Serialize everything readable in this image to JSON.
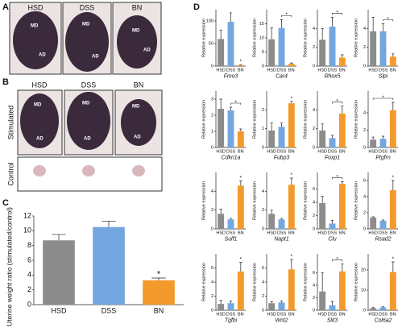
{
  "panel_labels": [
    "A",
    "B",
    "C",
    "D"
  ],
  "images": {
    "A": {
      "groups": [
        "HSD",
        "DSS",
        "BN"
      ],
      "region_labels": [
        "MD",
        "AD"
      ]
    },
    "B": {
      "groups": [
        "HSD",
        "DSS",
        "BN"
      ],
      "rows": [
        "Stimulated",
        "Control"
      ],
      "region_labels": [
        "MD",
        "AD"
      ]
    }
  },
  "chart_data": [
    {
      "type": "bar",
      "y_label": "Uterine weight ratio (stimulated/control)",
      "categories": [
        "HSD",
        "DSS",
        "BN"
      ],
      "colors": [
        "#8c8c8c",
        "#74a6df",
        "#f39a2c"
      ],
      "values": [
        8.7,
        10.5,
        3.3
      ],
      "errors": [
        0.8,
        0.8,
        0.3
      ],
      "ylim": [
        0,
        12
      ],
      "yticks": [
        0,
        2,
        4,
        6,
        8,
        10,
        12
      ],
      "annotation": "*",
      "annotation_span": [
        "BN"
      ]
    },
    {
      "type": "bar",
      "title": "Fmo3",
      "y_label": "Relative expression",
      "categories": [
        "HSD",
        "DSS",
        "BN"
      ],
      "colors": [
        "#8c8c8c",
        "#74a6df",
        "#f39a2c"
      ],
      "values": [
        60,
        98,
        2
      ],
      "errors": [
        20,
        20,
        1
      ],
      "ylim": [
        0,
        125
      ],
      "yticks": [
        0,
        50,
        100
      ],
      "annotation": "*",
      "annotation_span": [
        "BN"
      ]
    },
    {
      "type": "bar",
      "title": "Car4",
      "y_label": "Relative expression",
      "categories": [
        "HSD",
        "DSS",
        "BN"
      ],
      "colors": [
        "#8c8c8c",
        "#74a6df",
        "#f39a2c"
      ],
      "values": [
        9.5,
        13.5,
        0.8
      ],
      "errors": [
        4,
        3,
        0.3
      ],
      "ylim": [
        0,
        20
      ],
      "yticks": [
        0,
        5,
        10,
        15
      ],
      "annotation": "*",
      "annotation_span": [
        "DSS",
        "BN"
      ]
    },
    {
      "type": "bar",
      "title": "Rhox5",
      "y_label": "Relative expression",
      "categories": [
        "HSD",
        "DSS",
        "BN"
      ],
      "colors": [
        "#8c8c8c",
        "#74a6df",
        "#f39a2c"
      ],
      "values": [
        2.8,
        4.2,
        0.9
      ],
      "errors": [
        1.2,
        1,
        0.3
      ],
      "ylim": [
        0,
        6
      ],
      "yticks": [
        0,
        2,
        4
      ],
      "annotation": "*",
      "annotation_span": [
        "DSS",
        "BN"
      ]
    },
    {
      "type": "bar",
      "title": "Slpi",
      "y_label": "Relative expression",
      "categories": [
        "HSD",
        "DSS",
        "BN"
      ],
      "colors": [
        "#8c8c8c",
        "#74a6df",
        "#f39a2c"
      ],
      "values": [
        3.7,
        3.7,
        1
      ],
      "errors": [
        1.5,
        0.8,
        0.3
      ],
      "ylim": [
        0,
        6
      ],
      "yticks": [
        0,
        2,
        4
      ],
      "annotation": "*",
      "annotation_span": [
        "DSS",
        "BN"
      ]
    },
    {
      "type": "bar",
      "title": "Cdkn1a",
      "y_label": "Relative expression",
      "categories": [
        "HSD",
        "DSS",
        "BN"
      ],
      "colors": [
        "#8c8c8c",
        "#74a6df",
        "#f39a2c"
      ],
      "values": [
        2.4,
        2.3,
        1.0
      ],
      "errors": [
        0.6,
        0.2,
        0.15
      ],
      "ylim": [
        0,
        3.5
      ],
      "yticks": [
        0,
        1,
        2,
        3
      ],
      "annotation": "*",
      "annotation_span": [
        "DSS",
        "BN"
      ]
    },
    {
      "type": "bar",
      "title": "Fubp3",
      "y_label": "Relative expression",
      "categories": [
        "HSD",
        "DSS",
        "BN"
      ],
      "colors": [
        "#8c8c8c",
        "#74a6df",
        "#f39a2c"
      ],
      "values": [
        0.9,
        1.1,
        2.35
      ],
      "errors": [
        0.4,
        0.2,
        0.1
      ],
      "ylim": [
        0,
        3
      ],
      "yticks": [
        0,
        1,
        2
      ],
      "annotation": "*",
      "annotation_span": [
        "BN"
      ]
    },
    {
      "type": "bar",
      "title": "Foxp1",
      "y_label": "Relative expression",
      "categories": [
        "HSD",
        "DSS",
        "BN"
      ],
      "colors": [
        "#8c8c8c",
        "#74a6df",
        "#f39a2c"
      ],
      "values": [
        1.8,
        1.0,
        3.6
      ],
      "errors": [
        0.7,
        0.3,
        0.8
      ],
      "ylim": [
        0,
        6
      ],
      "yticks": [
        0,
        2,
        4
      ],
      "annotation": "*",
      "annotation_span": [
        "DSS",
        "BN"
      ]
    },
    {
      "type": "bar",
      "title": "Ptgfrn",
      "y_label": "Relative expression",
      "categories": [
        "HSD",
        "DSS",
        "BN"
      ],
      "colors": [
        "#8c8c8c",
        "#74a6df",
        "#f39a2c"
      ],
      "values": [
        0.9,
        1.0,
        4.3
      ],
      "errors": [
        0.3,
        0.3,
        0.9
      ],
      "ylim": [
        0,
        6.5
      ],
      "yticks": [
        0,
        2,
        4
      ],
      "annotation": "*",
      "annotation_span": [
        "HSD",
        "BN"
      ]
    },
    {
      "type": "bar",
      "title": "Sulf1",
      "y_label": "Relative expression",
      "categories": [
        "HSD",
        "DSS",
        "BN"
      ],
      "colors": [
        "#8c8c8c",
        "#74a6df",
        "#f39a2c"
      ],
      "values": [
        1.6,
        1.0,
        4.6
      ],
      "errors": [
        0.5,
        0.1,
        0.5
      ],
      "ylim": [
        0,
        6
      ],
      "yticks": [
        0,
        2,
        4
      ],
      "annotation": "*",
      "annotation_span": [
        "BN"
      ]
    },
    {
      "type": "bar",
      "title": "Napt1",
      "y_label": "Relative expression",
      "categories": [
        "HSD",
        "DSS",
        "BN"
      ],
      "colors": [
        "#8c8c8c",
        "#74a6df",
        "#f39a2c"
      ],
      "values": [
        1.6,
        1.0,
        4.7
      ],
      "errors": [
        0.4,
        0.1,
        0.7
      ],
      "ylim": [
        0,
        6
      ],
      "yticks": [
        0,
        2,
        4
      ],
      "annotation": "*",
      "annotation_span": [
        "BN"
      ]
    },
    {
      "type": "bar",
      "title": "Clu",
      "y_label": "Relative expression",
      "categories": [
        "HSD",
        "DSS",
        "BN"
      ],
      "colors": [
        "#8c8c8c",
        "#74a6df",
        "#f39a2c"
      ],
      "values": [
        3.9,
        0.8,
        6.8
      ],
      "errors": [
        1,
        0.5,
        0.3
      ],
      "ylim": [
        0,
        8.5
      ],
      "yticks": [
        0,
        2,
        4,
        6
      ],
      "annotation": "*",
      "annotation_span": [
        "DSS",
        "BN"
      ]
    },
    {
      "type": "bar",
      "title": "Rsad2",
      "y_label": "Relative expression",
      "categories": [
        "HSD",
        "DSS",
        "BN"
      ],
      "colors": [
        "#8c8c8c",
        "#74a6df",
        "#f39a2c"
      ],
      "values": [
        1.4,
        1.0,
        4.8
      ],
      "errors": [
        0.1,
        0.1,
        1.2
      ],
      "ylim": [
        0,
        7
      ],
      "yticks": [
        0,
        2,
        4,
        6
      ],
      "annotation": "*",
      "annotation_span": [
        "BN"
      ]
    },
    {
      "type": "bar",
      "title": "Tgfbi",
      "y_label": "Relative expression",
      "categories": [
        "HSD",
        "DSS",
        "BN"
      ],
      "colors": [
        "#8c8c8c",
        "#74a6df",
        "#f39a2c"
      ],
      "values": [
        0.9,
        1.0,
        5.5
      ],
      "errors": [
        0.5,
        0.3,
        1.3
      ],
      "ylim": [
        0,
        8
      ],
      "yticks": [
        0,
        2,
        4,
        6
      ],
      "annotation": "*",
      "annotation_span": [
        "BN"
      ]
    },
    {
      "type": "bar",
      "title": "Wnt2",
      "y_label": "Relative expression",
      "categories": [
        "HSD",
        "DSS",
        "BN"
      ],
      "colors": [
        "#8c8c8c",
        "#74a6df",
        "#f39a2c"
      ],
      "values": [
        1.0,
        1.1,
        5.8
      ],
      "errors": [
        0.2,
        0.2,
        1.4
      ],
      "ylim": [
        0,
        8
      ],
      "yticks": [
        0,
        2,
        4,
        6
      ],
      "annotation": "*",
      "annotation_span": [
        "BN"
      ]
    },
    {
      "type": "bar",
      "title": "Slit3",
      "y_label": "Relative expression",
      "categories": [
        "HSD",
        "DSS",
        "BN"
      ],
      "colors": [
        "#8c8c8c",
        "#74a6df",
        "#f39a2c"
      ],
      "values": [
        3,
        0.8,
        6.2
      ],
      "errors": [
        3,
        0.6,
        1.2
      ],
      "ylim": [
        0,
        9
      ],
      "yticks": [
        0,
        2,
        4,
        6
      ],
      "annotation": "*",
      "annotation_span": [
        "DSS",
        "BN"
      ]
    },
    {
      "type": "bar",
      "title": "Col6a2",
      "y_label": "Relative expression",
      "categories": [
        "HSD",
        "DSS",
        "BN"
      ],
      "colors": [
        "#8c8c8c",
        "#74a6df",
        "#f39a2c"
      ],
      "values": [
        1,
        1.4,
        19
      ],
      "errors": [
        0.3,
        0.3,
        5
      ],
      "ylim": [
        0,
        28
      ],
      "yticks": [
        0,
        10,
        20
      ],
      "annotation": "*",
      "annotation_span": [
        "BN"
      ]
    }
  ]
}
